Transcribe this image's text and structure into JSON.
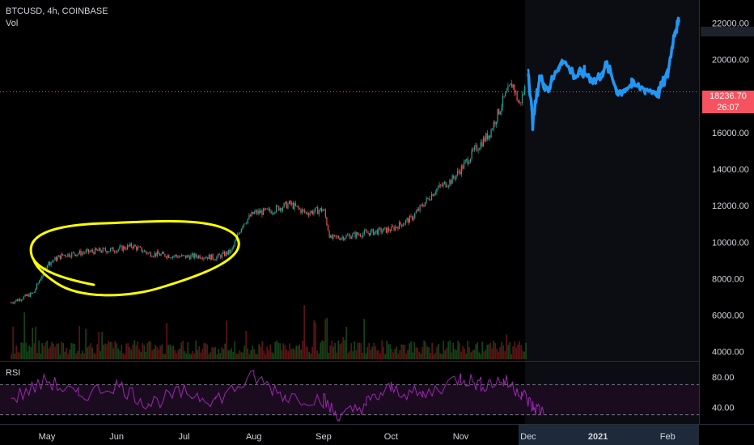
{
  "header": {
    "symbol_line": "BTCUSD, 4h, COINBASE",
    "volume_label": "Vol",
    "rsi_label": "RSI"
  },
  "price_marker": {
    "price": "18236.70",
    "countdown": "26:07"
  },
  "colors": {
    "background": "#000000",
    "candle_up": "#26a69a",
    "candle_down": "#ef5350",
    "projection": "#2196f3",
    "annotation": "#ffff00",
    "rsi_line": "#9c27b0",
    "price_line": "#f7525f",
    "axis_text": "#d1d4dc"
  },
  "chart_data": [
    {
      "type": "line",
      "title": "BTCUSD, 4h, COINBASE",
      "series": [
        {
          "name": "",
          "style": "candles",
          "x": [
            "Apr 15",
            "Apr 25",
            "May 1",
            "May 8",
            "May 15",
            "May 22",
            "Jun 1",
            "Jun 8",
            "Jun 15",
            "Jun 22",
            "Jul 1",
            "Jul 8",
            "Jul 15",
            "Jul 22",
            "Jul 27",
            "Aug 1",
            "Aug 8",
            "Aug 17",
            "Aug 24",
            "Sep 1",
            "Sep 4",
            "Sep 10",
            "Sep 20",
            "Oct 1",
            "Oct 10",
            "Oct 21",
            "Oct 28",
            "Nov 1",
            "Nov 7",
            "Nov 14",
            "Nov 20",
            "Nov 24",
            "Nov 27",
            "Nov 30"
          ],
          "values": [
            6700,
            7200,
            8800,
            9300,
            9400,
            9500,
            9600,
            9800,
            9400,
            9300,
            9200,
            9250,
            9150,
            9500,
            11000,
            11600,
            11700,
            12100,
            11600,
            11800,
            10200,
            10300,
            10500,
            10700,
            11300,
            12900,
            13400,
            14000,
            15000,
            16000,
            17800,
            18700,
            17500,
            18600
          ]
        },
        {
          "name": "",
          "style": "projection",
          "x": [
            "Dec 1",
            "Dec 3",
            "Dec 6",
            "Dec 10",
            "Dec 16",
            "Dec 22",
            "Dec 26",
            "Dec 31",
            "Jan 5",
            "Jan 10",
            "Jan 16",
            "Jan 22",
            "Jan 28",
            "Feb 1",
            "Feb 4",
            "Feb 6"
          ],
          "values": [
            19500,
            16500,
            19000,
            18400,
            20000,
            19100,
            19300,
            18800,
            19700,
            18200,
            18600,
            18400,
            18200,
            19200,
            21500,
            22000
          ]
        }
      ],
      "x_ticks": [
        "May",
        "Jun",
        "Jul",
        "Aug",
        "Sep",
        "Oct",
        "Nov",
        "Dec",
        "2021",
        "Feb"
      ],
      "y_ticks": [
        "4000.00",
        "6000.00",
        "8000.00",
        "10000.00",
        "12000.00",
        "14000.00",
        "16000.00",
        "18000.00",
        "20000.00",
        "22000.00"
      ],
      "ylim": [
        3500,
        23000
      ],
      "grid": false,
      "annotations": [
        {
          "kind": "hand-drawn ellipse",
          "around": "May–Jul consolidation",
          "color": "#ffff00"
        },
        {
          "kind": "horizontal dotted line",
          "value": 18236.7
        }
      ]
    },
    {
      "type": "bar",
      "title": "Vol",
      "x": [
        "Apr",
        "May",
        "Jun",
        "Jul",
        "Aug",
        "Sep",
        "Oct",
        "Nov",
        "Nov end"
      ],
      "values": [
        0.2,
        0.5,
        0.35,
        0.25,
        0.4,
        0.3,
        0.2,
        0.35,
        0.4
      ],
      "value_unit": "relative"
    },
    {
      "type": "line",
      "title": "RSI",
      "x": [
        "Apr 15",
        "May 1",
        "May 15",
        "Jun 1",
        "Jun 15",
        "Jul 1",
        "Jul 15",
        "Aug 1",
        "Aug 15",
        "Sep 1",
        "Sep 8",
        "Sep 20",
        "Oct 1",
        "Oct 15",
        "Nov 1",
        "Nov 10",
        "Nov 20",
        "Nov 28",
        "Dec 3",
        "Dec 8"
      ],
      "values": [
        50,
        75,
        55,
        70,
        45,
        60,
        50,
        80,
        55,
        50,
        25,
        45,
        65,
        55,
        80,
        70,
        75,
        60,
        40,
        35
      ],
      "y_ticks": [
        "40.00",
        "80.00"
      ],
      "ylim": [
        20,
        95
      ],
      "guide_lines": [
        70,
        30
      ]
    }
  ]
}
